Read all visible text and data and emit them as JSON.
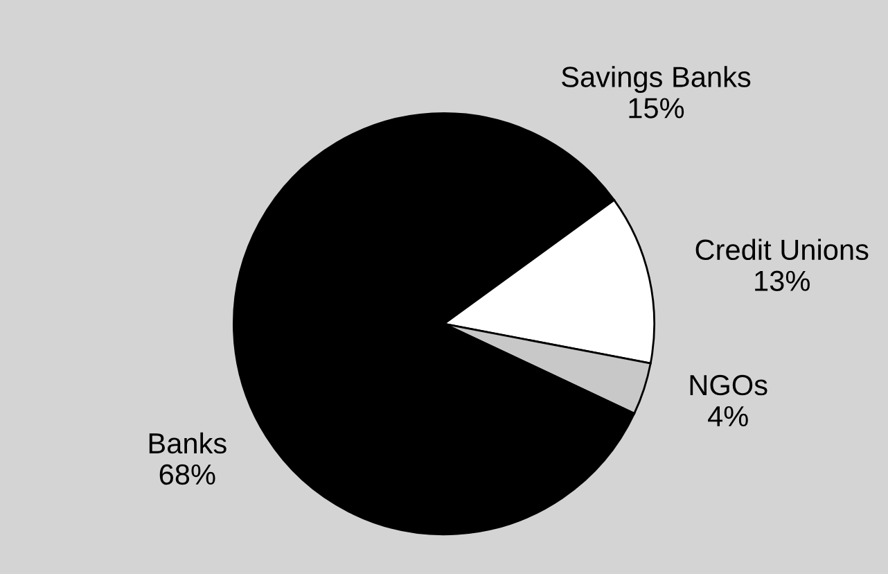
{
  "chart_data": {
    "type": "pie",
    "categories": [
      "Savings Banks",
      "Credit Unions",
      "NGOs",
      "Banks"
    ],
    "values": [
      15,
      13,
      4,
      68
    ],
    "value_labels": [
      "15%",
      "13%",
      "4%",
      "68%"
    ],
    "colors": [
      "#000000",
      "#ffffff",
      "#c8c8c8",
      "#000000"
    ]
  }
}
